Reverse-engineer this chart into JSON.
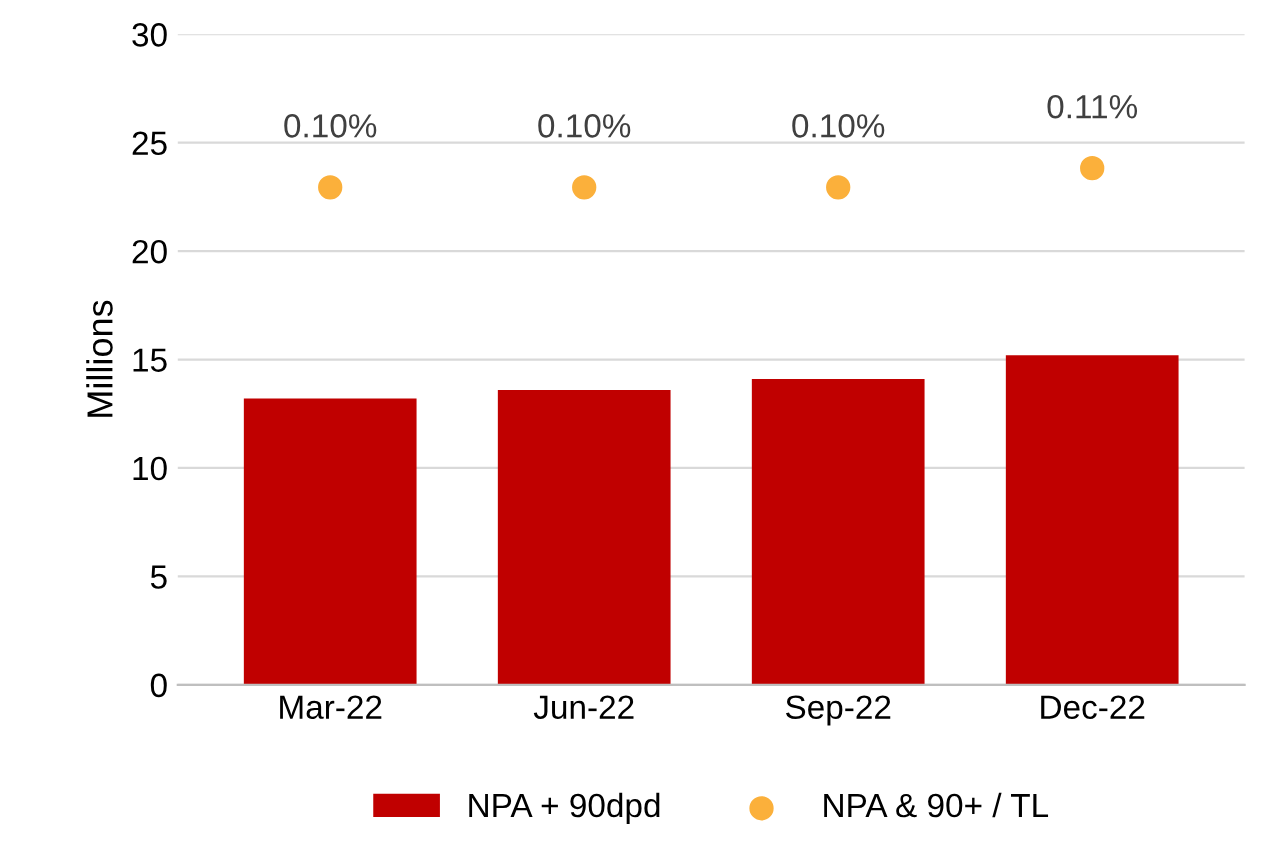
{
  "chart_data": {
    "type": "bar",
    "ylabel": "Millions",
    "categories": [
      "Mar-22",
      "Jun-22",
      "Sep-22",
      "Dec-22"
    ],
    "series": [
      {
        "name": "NPA + 90dpd",
        "color": "#c00000",
        "values": [
          13.2,
          13.6,
          14.1,
          15.2
        ]
      },
      {
        "name": "NPA & 90+ / TL",
        "type": "scatter",
        "axis": "y2",
        "color": "#fbb03b",
        "values": [
          0.1,
          0.1,
          0.1,
          0.11
        ],
        "value_labels": [
          "0.10%",
          "0.10%",
          "0.10%",
          "0.11%"
        ]
      }
    ],
    "ylim": [
      0,
      30
    ],
    "yticks": [
      0,
      5,
      10,
      15,
      20,
      25,
      30
    ],
    "y2lim": [
      -0.16,
      0.18
    ],
    "tick_labels": "xy",
    "grid": "y",
    "legend": "bottom",
    "marker": "circle"
  }
}
